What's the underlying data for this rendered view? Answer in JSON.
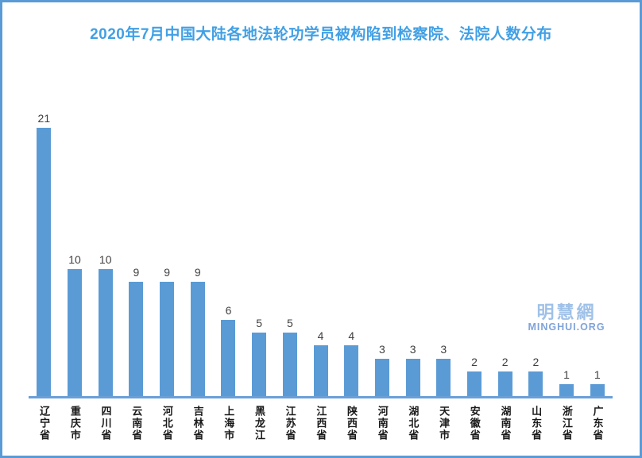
{
  "colors": {
    "frame_border": "#5b9bd5",
    "bar": "#5b9bd5",
    "axis_line": "#6b9fd8",
    "title": "#41a0e5",
    "value_label": "#404040",
    "category_label": "#1a1a1a",
    "watermark_cjk": "#9fc1e8",
    "watermark_latin": "#7fa3d9"
  },
  "watermark": {
    "cjk": "明慧網",
    "latin": "MINGHUI.ORG"
  },
  "chart_data": {
    "type": "bar",
    "title": "2020年7月中国大陆各地法轮功学员被构陷到检察院、法院人数分布",
    "categories": [
      "辽宁省",
      "重庆市",
      "四川省",
      "云南省",
      "河北省",
      "吉林省",
      "上海市",
      "黑龙江",
      "江苏省",
      "江西省",
      "陕西省",
      "河南省",
      "湖北省",
      "天津市",
      "安徽省",
      "湖南省",
      "山东省",
      "浙江省",
      "广东省"
    ],
    "values": [
      21,
      10,
      10,
      9,
      9,
      9,
      6,
      5,
      5,
      4,
      4,
      3,
      3,
      3,
      2,
      2,
      2,
      1,
      1
    ],
    "xlabel": "",
    "ylabel": "",
    "ylim": [
      0,
      21
    ],
    "grid": false,
    "legend": "none",
    "value_labels": true,
    "category_label_orientation": "vertical"
  }
}
